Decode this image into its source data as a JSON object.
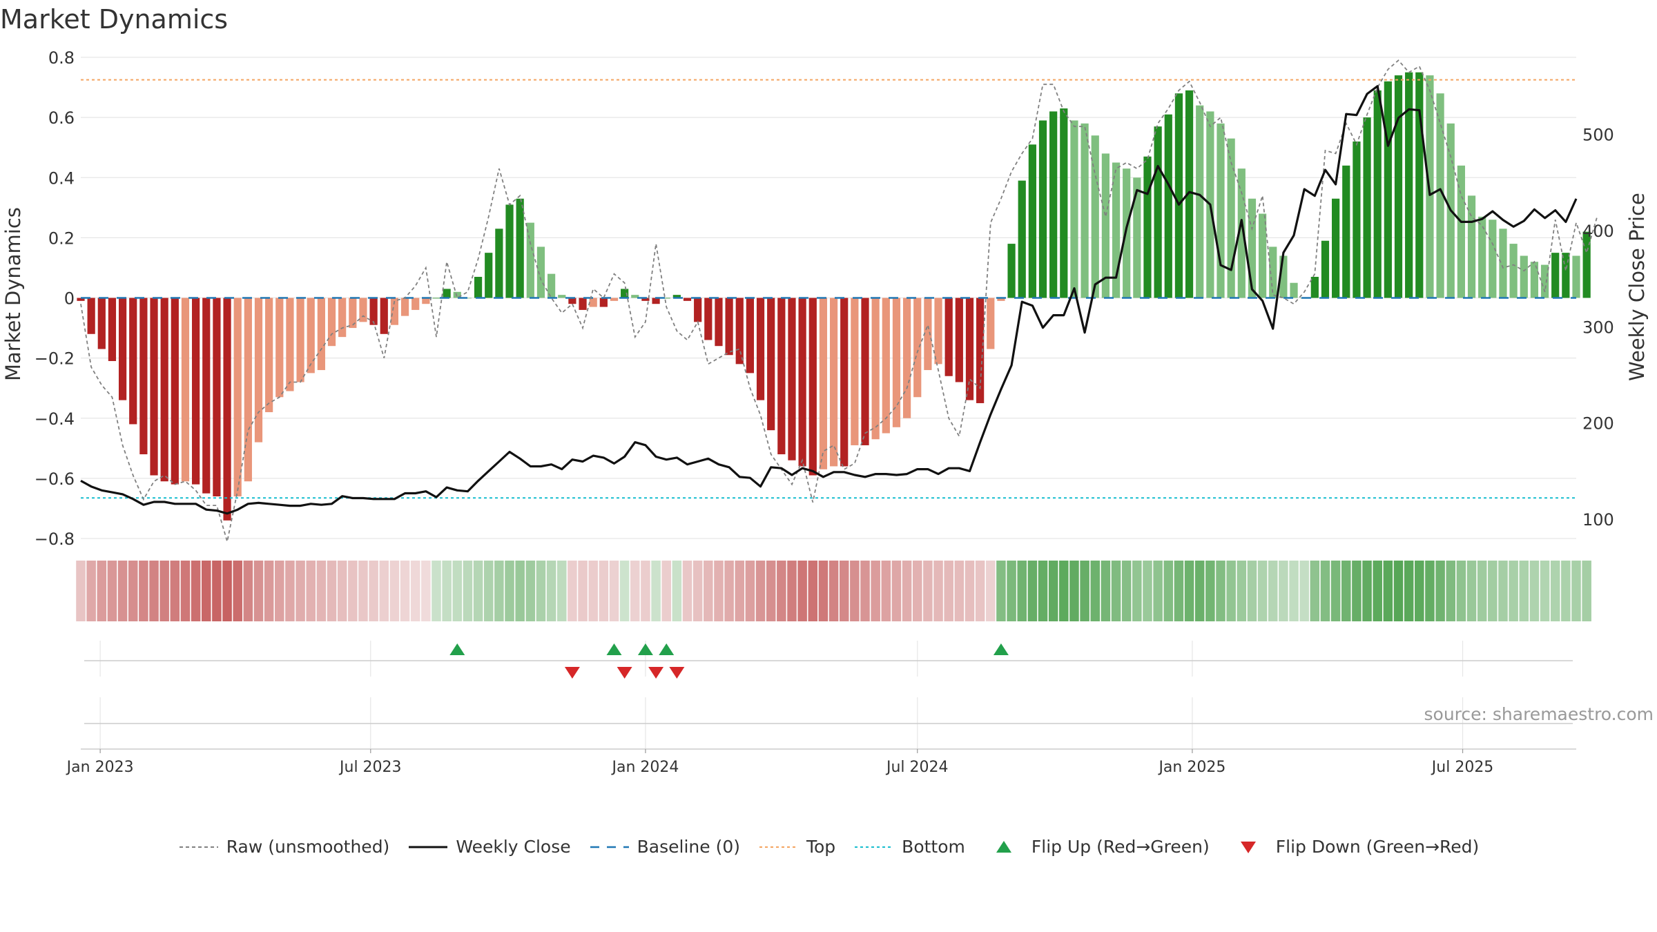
{
  "title": "Market Dynamics",
  "source": "source: sharemaestro.com",
  "colors": {
    "bear_strong": "#b22222",
    "bear_weak": "#e9967a",
    "bull_strong": "#228b22",
    "bull_weak": "#7fbf7f",
    "raw": "#808080",
    "close": "#111111",
    "baseline": "#1f77b4",
    "top": "#f4a460",
    "bottom": "#17becf",
    "flip_up": "#22a04b",
    "flip_down": "#d62728"
  },
  "legend": [
    {
      "key": "raw",
      "label": "Raw (unsmoothed)",
      "style": "dashed-gray"
    },
    {
      "key": "close",
      "label": "Weekly Close",
      "style": "solid-black"
    },
    {
      "key": "baseline",
      "label": "Baseline (0)",
      "style": "dashed-blue"
    },
    {
      "key": "top",
      "label": "Top",
      "style": "dotted-orange"
    },
    {
      "key": "bottom",
      "label": "Bottom",
      "style": "dotted-cyan"
    },
    {
      "key": "flip_up",
      "label": "Flip Up (Red→Green)",
      "style": "triangle-up"
    },
    {
      "key": "flip_down",
      "label": "Flip Down (Green→Red)",
      "style": "triangle-down"
    }
  ],
  "chart_data": {
    "type": "bar",
    "title": "Market Dynamics",
    "ylabel": "Market Dynamics",
    "y2label": "Weekly Close Price",
    "ylim": [
      -0.8,
      0.8
    ],
    "y2lim": [
      80,
      580
    ],
    "yticks": [
      "0.8",
      "0.6",
      "0.4",
      "0.2",
      "0",
      "−0.2",
      "−0.4",
      "−0.6",
      "−0.8"
    ],
    "y2ticks": [
      "500",
      "400",
      "300",
      "200",
      "100"
    ],
    "xticks": [
      "Jan 2023",
      "Jul 2023",
      "Jan 2024",
      "Jul 2024",
      "Jan 2025",
      "Jul 2025"
    ],
    "xlim": [
      "2022-12-19",
      "2025-09-15"
    ],
    "first_week": "2022-12-19",
    "top_level": 0.725,
    "bottom_level": -0.665,
    "grid": true,
    "legend_position": "bottom-center",
    "series": [
      {
        "name": "Market Dynamics",
        "kind": "bar",
        "values": [
          -0.01,
          -0.12,
          -0.17,
          -0.21,
          -0.34,
          -0.42,
          -0.52,
          -0.59,
          -0.61,
          -0.62,
          -0.61,
          -0.62,
          -0.65,
          -0.66,
          -0.74,
          -0.66,
          -0.61,
          -0.48,
          -0.38,
          -0.33,
          -0.31,
          -0.28,
          -0.25,
          -0.24,
          -0.16,
          -0.13,
          -0.1,
          -0.08,
          -0.09,
          -0.12,
          -0.09,
          -0.06,
          -0.04,
          -0.02,
          0.0,
          0.03,
          0.02,
          0.0,
          0.07,
          0.15,
          0.23,
          0.31,
          0.33,
          0.25,
          0.17,
          0.08,
          0.01,
          -0.02,
          -0.04,
          -0.03,
          -0.03,
          -0.01,
          0.03,
          0.01,
          -0.01,
          -0.02,
          0.0,
          0.01,
          -0.01,
          -0.08,
          -0.14,
          -0.16,
          -0.19,
          -0.22,
          -0.25,
          -0.34,
          -0.44,
          -0.52,
          -0.54,
          -0.56,
          -0.59,
          -0.57,
          -0.56,
          -0.56,
          -0.49,
          -0.49,
          -0.47,
          -0.45,
          -0.43,
          -0.4,
          -0.33,
          -0.24,
          -0.22,
          -0.26,
          -0.28,
          -0.34,
          -0.35,
          -0.17,
          -0.01,
          0.18,
          0.39,
          0.51,
          0.59,
          0.62,
          0.63,
          0.59,
          0.58,
          0.54,
          0.48,
          0.45,
          0.43,
          0.4,
          0.47,
          0.57,
          0.61,
          0.68,
          0.69,
          0.64,
          0.62,
          0.58,
          0.53,
          0.43,
          0.33,
          0.28,
          0.17,
          0.14,
          0.05,
          0.0,
          0.07,
          0.19,
          0.33,
          0.44,
          0.52,
          0.6,
          0.69,
          0.72,
          0.74,
          0.75,
          0.75,
          0.74,
          0.68,
          0.58,
          0.44,
          0.34,
          0.27,
          0.26,
          0.23,
          0.18,
          0.14,
          0.12,
          0.11,
          0.15,
          0.15,
          0.14,
          0.22
        ]
      },
      {
        "name": "Raw (unsmoothed)",
        "kind": "line",
        "values": [
          -0.02,
          -0.23,
          -0.29,
          -0.33,
          -0.49,
          -0.59,
          -0.67,
          -0.61,
          -0.59,
          -0.62,
          -0.61,
          -0.64,
          -0.69,
          -0.69,
          -0.81,
          -0.64,
          -0.44,
          -0.38,
          -0.35,
          -0.33,
          -0.28,
          -0.28,
          -0.22,
          -0.17,
          -0.12,
          -0.1,
          -0.09,
          -0.06,
          -0.08,
          -0.2,
          -0.01,
          0.0,
          0.04,
          0.1,
          -0.13,
          0.12,
          0.0,
          0.02,
          0.13,
          0.27,
          0.43,
          0.31,
          0.34,
          0.18,
          0.06,
          0.0,
          -0.05,
          -0.02,
          -0.1,
          0.03,
          0.0,
          0.08,
          0.05,
          -0.13,
          -0.08,
          0.18,
          -0.03,
          -0.11,
          -0.14,
          -0.08,
          -0.22,
          -0.2,
          -0.18,
          -0.17,
          -0.3,
          -0.39,
          -0.52,
          -0.57,
          -0.62,
          -0.54,
          -0.68,
          -0.51,
          -0.49,
          -0.57,
          -0.55,
          -0.45,
          -0.43,
          -0.4,
          -0.36,
          -0.3,
          -0.18,
          -0.09,
          -0.24,
          -0.4,
          -0.46,
          -0.27,
          -0.3,
          0.25,
          0.33,
          0.42,
          0.48,
          0.53,
          0.71,
          0.71,
          0.62,
          0.57,
          0.57,
          0.41,
          0.27,
          0.43,
          0.45,
          0.43,
          0.46,
          0.58,
          0.63,
          0.69,
          0.72,
          0.65,
          0.57,
          0.6,
          0.45,
          0.35,
          0.23,
          0.34,
          0.01,
          0.0,
          -0.02,
          0.02,
          0.08,
          0.49,
          0.48,
          0.58,
          0.51,
          0.61,
          0.7,
          0.76,
          0.79,
          0.75,
          0.77,
          0.69,
          0.58,
          0.47,
          0.34,
          0.27,
          0.24,
          0.18,
          0.1,
          0.11,
          0.09,
          0.12,
          0.02,
          0.26,
          0.09,
          0.25,
          0.15,
          0.27
        ]
      },
      {
        "name": "Weekly Close",
        "kind": "line",
        "axis": "y2",
        "values": [
          140,
          134,
          130,
          128,
          126,
          121,
          115,
          118,
          118,
          116,
          116,
          116,
          110,
          109,
          106,
          110,
          116,
          117,
          116,
          115,
          114,
          114,
          116,
          115,
          116,
          124,
          122,
          122,
          121,
          121,
          121,
          127,
          127,
          129,
          123,
          133,
          130,
          129,
          140,
          150,
          160,
          170,
          163,
          155,
          155,
          157,
          152,
          162,
          160,
          166,
          164,
          158,
          165,
          180,
          177,
          165,
          162,
          164,
          157,
          160,
          163,
          157,
          154,
          144,
          143,
          134,
          154,
          153,
          146,
          153,
          150,
          144,
          149,
          149,
          146,
          144,
          147,
          147,
          146,
          147,
          152,
          152,
          147,
          153,
          153,
          150,
          180,
          209,
          235,
          260,
          326,
          322,
          299,
          312,
          312,
          340,
          294,
          344,
          351,
          351,
          403,
          442,
          438,
          467,
          448,
          427,
          440,
          437,
          427,
          364,
          359,
          411,
          339,
          327,
          298,
          377,
          395,
          443,
          436,
          463,
          448,
          521,
          520,
          542,
          550,
          488,
          517,
          526,
          525,
          437,
          443,
          421,
          409,
          409,
          412,
          420,
          411,
          404,
          410,
          422,
          413,
          421,
          409,
          433
        ]
      }
    ],
    "regime_strip": {
      "name": "Regime intensity",
      "values": [
        -0.18,
        -0.36,
        -0.44,
        -0.47,
        -0.51,
        -0.53,
        -0.57,
        -0.6,
        -0.62,
        -0.64,
        -0.67,
        -0.72,
        -0.77,
        -0.79,
        -0.82,
        -0.74,
        -0.58,
        -0.5,
        -0.45,
        -0.4,
        -0.36,
        -0.33,
        -0.3,
        -0.28,
        -0.25,
        -0.22,
        -0.19,
        -0.16,
        -0.14,
        -0.11,
        -0.09,
        -0.07,
        -0.05,
        -0.03,
        0.14,
        0.18,
        0.2,
        0.24,
        0.28,
        0.33,
        0.38,
        0.43,
        0.46,
        0.42,
        0.35,
        0.28,
        0.22,
        -0.12,
        -0.14,
        -0.13,
        -0.12,
        -0.1,
        0.12,
        -0.1,
        -0.12,
        0.13,
        -0.12,
        0.15,
        -0.16,
        -0.2,
        -0.26,
        -0.3,
        -0.34,
        -0.38,
        -0.42,
        -0.48,
        -0.52,
        -0.58,
        -0.64,
        -0.68,
        -0.7,
        -0.66,
        -0.6,
        -0.56,
        -0.52,
        -0.48,
        -0.44,
        -0.4,
        -0.37,
        -0.33,
        -0.3,
        -0.27,
        -0.26,
        -0.25,
        -0.24,
        -0.22,
        -0.18,
        -0.1,
        0.6,
        0.65,
        0.72,
        0.78,
        0.8,
        0.82,
        0.84,
        0.82,
        0.78,
        0.74,
        0.68,
        0.62,
        0.58,
        0.5,
        0.45,
        0.52,
        0.6,
        0.68,
        0.74,
        0.76,
        0.7,
        0.6,
        0.5,
        0.44,
        0.38,
        0.32,
        0.28,
        0.24,
        0.2,
        0.18,
        0.52,
        0.6,
        0.66,
        0.72,
        0.78,
        0.82,
        0.84,
        0.86,
        0.88,
        0.86,
        0.84,
        0.8,
        0.72,
        0.62,
        0.52,
        0.46,
        0.42,
        0.4,
        0.38,
        0.36,
        0.34,
        0.32,
        0.3,
        0.32,
        0.34,
        0.36,
        0.38
      ]
    },
    "flip_up_dates": [
      "2023-08-28",
      "2023-12-11",
      "2024-01-01",
      "2024-01-15",
      "2024-08-26"
    ],
    "flip_down_dates": [
      "2023-11-13",
      "2023-12-18",
      "2024-01-08",
      "2024-01-22"
    ]
  }
}
